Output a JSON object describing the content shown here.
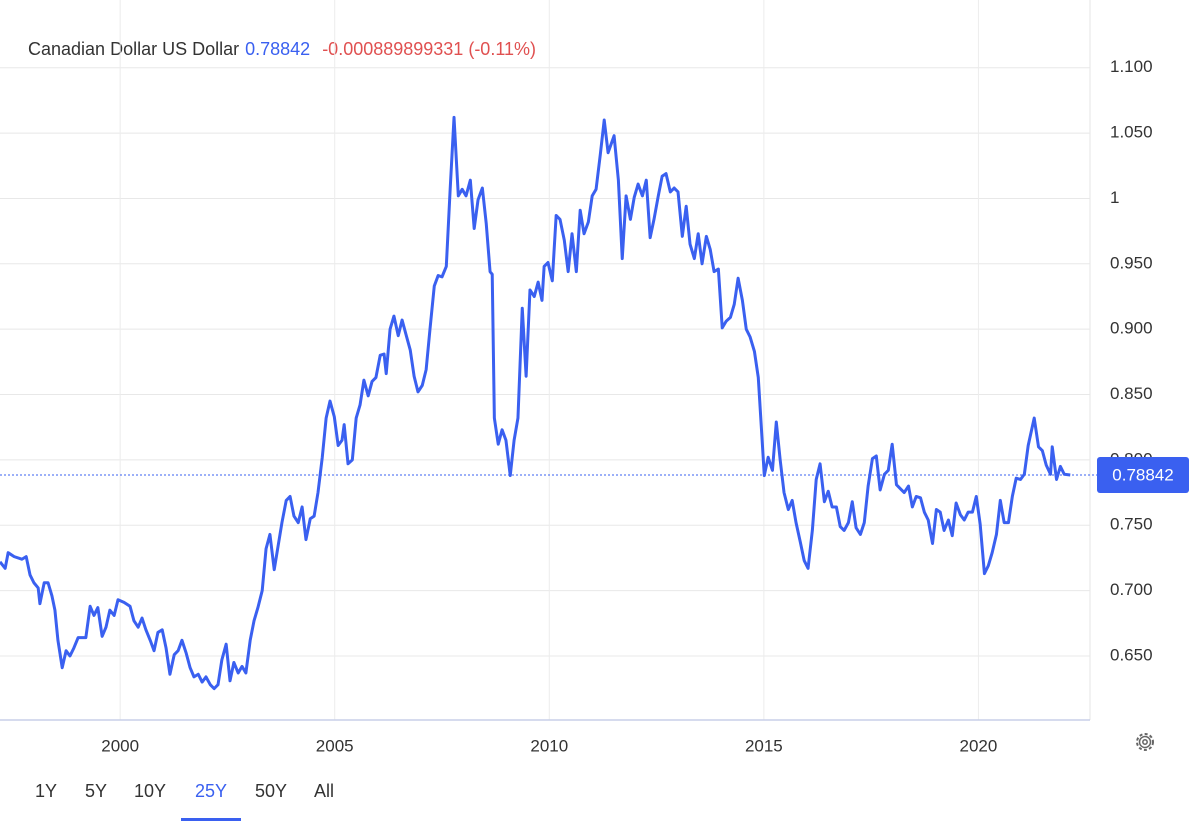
{
  "chart_data": {
    "type": "line",
    "title": "Canadian Dollar US Dollar",
    "last_value": 0.78842,
    "change": "-0.000889899331 (-0.11%)",
    "x": [
      1997.2,
      1997.32,
      1997.39,
      1997.53,
      1997.71,
      1997.81,
      1997.9,
      1997.99,
      1998.09,
      1998.13,
      1998.23,
      1998.32,
      1998.41,
      1998.48,
      1998.55,
      1998.65,
      1998.74,
      1998.83,
      1998.92,
      1999.02,
      1999.2,
      1999.3,
      1999.39,
      1999.48,
      1999.58,
      1999.67,
      1999.76,
      1999.86,
      1999.95,
      2000.09,
      2000.23,
      2000.32,
      2000.42,
      2000.51,
      2000.6,
      2000.7,
      2000.79,
      2000.88,
      2000.98,
      2001.07,
      2001.16,
      2001.26,
      2001.35,
      2001.44,
      2001.54,
      2001.63,
      2001.72,
      2001.82,
      2001.91,
      2002.0,
      2002.1,
      2002.19,
      2002.28,
      2002.37,
      2002.47,
      2002.56,
      2002.65,
      2002.75,
      2002.84,
      2002.93,
      2003.03,
      2003.12,
      2003.21,
      2003.31,
      2003.4,
      2003.49,
      2003.59,
      2003.68,
      2003.77,
      2003.87,
      2003.96,
      2004.05,
      2004.15,
      2004.24,
      2004.33,
      2004.43,
      2004.52,
      2004.61,
      2004.71,
      2004.8,
      2004.89,
      2004.99,
      2005.08,
      2005.17,
      2005.22,
      2005.31,
      2005.41,
      2005.5,
      2005.59,
      2005.68,
      2005.78,
      2005.87,
      2005.96,
      2006.06,
      2006.15,
      2006.2,
      2006.29,
      2006.38,
      2006.48,
      2006.57,
      2006.66,
      2006.76,
      2006.85,
      2006.94,
      2007.04,
      2007.13,
      2007.22,
      2007.32,
      2007.41,
      2007.5,
      2007.6,
      2007.69,
      2007.78,
      2007.88,
      2007.97,
      2008.06,
      2008.16,
      2008.25,
      2008.34,
      2008.44,
      2008.53,
      2008.62,
      2008.67,
      2008.72,
      2008.81,
      2008.9,
      2008.99,
      2009.09,
      2009.18,
      2009.27,
      2009.37,
      2009.46,
      2009.55,
      2009.65,
      2009.74,
      2009.83,
      2009.88,
      2009.97,
      2010.07,
      2010.16,
      2010.25,
      2010.35,
      2010.44,
      2010.53,
      2010.63,
      2010.72,
      2010.81,
      2010.91,
      2011.0,
      2011.09,
      2011.19,
      2011.28,
      2011.37,
      2011.51,
      2011.61,
      2011.7,
      2011.79,
      2011.89,
      2011.98,
      2012.07,
      2012.17,
      2012.26,
      2012.35,
      2012.44,
      2012.54,
      2012.63,
      2012.72,
      2012.82,
      2012.91,
      2013.0,
      2013.1,
      2013.19,
      2013.28,
      2013.38,
      2013.47,
      2013.56,
      2013.66,
      2013.75,
      2013.84,
      2013.94,
      2014.03,
      2014.12,
      2014.22,
      2014.31,
      2014.4,
      2014.5,
      2014.59,
      2014.68,
      2014.78,
      2014.87,
      2014.96,
      2015.01,
      2015.1,
      2015.2,
      2015.29,
      2015.38,
      2015.47,
      2015.57,
      2015.66,
      2015.75,
      2015.85,
      2015.94,
      2016.03,
      2016.13,
      2016.22,
      2016.31,
      2016.41,
      2016.5,
      2016.59,
      2016.69,
      2016.78,
      2016.87,
      2016.97,
      2017.06,
      2017.15,
      2017.25,
      2017.34,
      2017.43,
      2017.53,
      2017.62,
      2017.71,
      2017.81,
      2017.9,
      2017.99,
      2018.09,
      2018.18,
      2018.27,
      2018.37,
      2018.46,
      2018.55,
      2018.65,
      2018.74,
      2018.83,
      2018.93,
      2019.02,
      2019.11,
      2019.2,
      2019.3,
      2019.39,
      2019.48,
      2019.58,
      2019.67,
      2019.76,
      2019.86,
      2019.95,
      2020.04,
      2020.14,
      2020.23,
      2020.32,
      2020.42,
      2020.51,
      2020.6,
      2020.7,
      2020.79,
      2020.88,
      2020.98,
      2021.07,
      2021.16,
      2021.3,
      2021.4,
      2021.49,
      2021.58,
      2021.68,
      2021.72,
      2021.82,
      2021.91,
      2022.0,
      2022.14
    ],
    "series": [
      {
        "name": "Canadian Dollar US Dollar",
        "color": "#3a60f0",
        "values": [
          0.722,
          0.717,
          0.729,
          0.726,
          0.724,
          0.726,
          0.712,
          0.706,
          0.702,
          0.69,
          0.706,
          0.706,
          0.696,
          0.685,
          0.662,
          0.641,
          0.654,
          0.65,
          0.656,
          0.664,
          0.664,
          0.688,
          0.681,
          0.687,
          0.665,
          0.672,
          0.685,
          0.681,
          0.693,
          0.691,
          0.688,
          0.677,
          0.672,
          0.679,
          0.67,
          0.662,
          0.654,
          0.668,
          0.67,
          0.656,
          0.636,
          0.651,
          0.654,
          0.662,
          0.652,
          0.641,
          0.634,
          0.636,
          0.63,
          0.634,
          0.628,
          0.625,
          0.628,
          0.647,
          0.659,
          0.631,
          0.645,
          0.637,
          0.642,
          0.637,
          0.662,
          0.677,
          0.687,
          0.7,
          0.732,
          0.743,
          0.716,
          0.734,
          0.752,
          0.769,
          0.772,
          0.757,
          0.752,
          0.764,
          0.739,
          0.755,
          0.757,
          0.775,
          0.802,
          0.832,
          0.845,
          0.833,
          0.811,
          0.815,
          0.827,
          0.797,
          0.8,
          0.832,
          0.842,
          0.861,
          0.849,
          0.86,
          0.863,
          0.88,
          0.881,
          0.866,
          0.9,
          0.91,
          0.895,
          0.907,
          0.896,
          0.884,
          0.864,
          0.852,
          0.857,
          0.869,
          0.9,
          0.933,
          0.941,
          0.94,
          0.948,
          1.007,
          1.062,
          1.002,
          1.007,
          1.002,
          1.014,
          0.977,
          0.999,
          1.008,
          0.981,
          0.944,
          0.942,
          0.832,
          0.812,
          0.823,
          0.815,
          0.788,
          0.815,
          0.832,
          0.916,
          0.864,
          0.93,
          0.925,
          0.936,
          0.922,
          0.948,
          0.951,
          0.937,
          0.987,
          0.984,
          0.968,
          0.944,
          0.973,
          0.944,
          0.991,
          0.973,
          0.982,
          1.002,
          1.007,
          1.034,
          1.06,
          1.035,
          1.048,
          1.014,
          0.954,
          1.002,
          0.984,
          1.001,
          1.011,
          1.002,
          1.014,
          0.97,
          0.984,
          1.002,
          1.017,
          1.019,
          1.005,
          1.008,
          1.005,
          0.971,
          0.994,
          0.965,
          0.954,
          0.973,
          0.95,
          0.971,
          0.961,
          0.944,
          0.946,
          0.901,
          0.906,
          0.909,
          0.919,
          0.939,
          0.922,
          0.9,
          0.894,
          0.883,
          0.863,
          0.815,
          0.788,
          0.802,
          0.792,
          0.829,
          0.8,
          0.775,
          0.762,
          0.769,
          0.752,
          0.737,
          0.723,
          0.717,
          0.746,
          0.785,
          0.797,
          0.768,
          0.776,
          0.764,
          0.764,
          0.749,
          0.746,
          0.752,
          0.768,
          0.748,
          0.743,
          0.752,
          0.78,
          0.801,
          0.803,
          0.777,
          0.789,
          0.792,
          0.812,
          0.781,
          0.778,
          0.775,
          0.78,
          0.764,
          0.772,
          0.771,
          0.76,
          0.754,
          0.736,
          0.762,
          0.76,
          0.746,
          0.754,
          0.742,
          0.767,
          0.758,
          0.754,
          0.76,
          0.76,
          0.772,
          0.751,
          0.713,
          0.719,
          0.729,
          0.743,
          0.769,
          0.752,
          0.752,
          0.772,
          0.786,
          0.785,
          0.789,
          0.811,
          0.832,
          0.81,
          0.807,
          0.796,
          0.789,
          0.81,
          0.785,
          0.795,
          0.789,
          0.78842
        ]
      }
    ],
    "xlim": [
      1997.2,
      2022.6
    ],
    "xticks": [
      2000,
      2005,
      2010,
      2015,
      2020
    ],
    "ylim": [
      0.601,
      1.148
    ],
    "yticks": [
      {
        "value": 0.65,
        "label": "0.650"
      },
      {
        "value": 0.7,
        "label": "0.700"
      },
      {
        "value": 0.75,
        "label": "0.750"
      },
      {
        "value": 0.8,
        "label": "0.800"
      },
      {
        "value": 0.85,
        "label": "0.850"
      },
      {
        "value": 0.9,
        "label": "0.900"
      },
      {
        "value": 0.95,
        "label": "0.950"
      },
      1,
      {
        "value": 1.05,
        "label": "1.050"
      },
      {
        "value": 1.1,
        "label": "1.100"
      }
    ],
    "grid": true,
    "ranges": [
      "1Y",
      "5Y",
      "10Y",
      "25Y",
      "50Y",
      "All"
    ],
    "selected_range": "25Y"
  }
}
